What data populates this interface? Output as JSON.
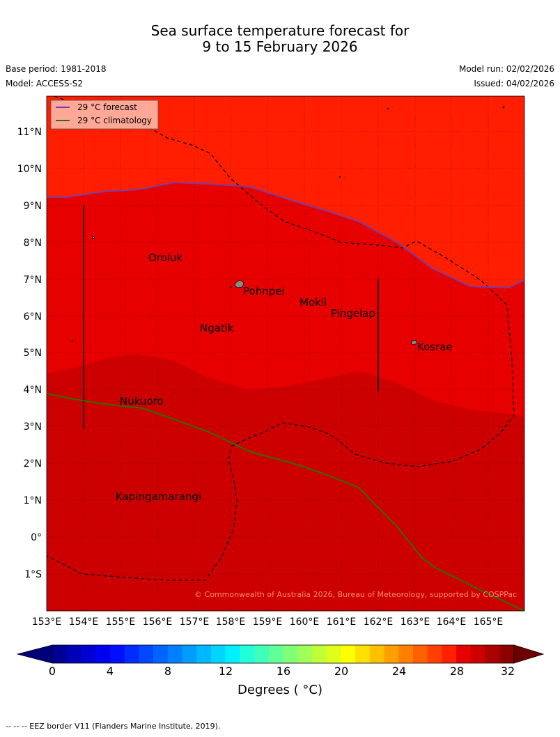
{
  "title": {
    "line1": "Sea surface temperature forecast for",
    "line2": "9 to 15 February 2026"
  },
  "meta": {
    "base_period": "Base period: 1981-2018",
    "model": "Model: ACCESS-S2",
    "model_run": "Model run: 02/02/2026",
    "issued": "Issued: 04/02/2026"
  },
  "map": {
    "lon_range": [
      153,
      166
    ],
    "lat_range": [
      -2,
      12
    ],
    "lon_ticks": [
      "153°E",
      "154°E",
      "155°E",
      "156°E",
      "157°E",
      "158°E",
      "159°E",
      "160°E",
      "161°E",
      "162°E",
      "163°E",
      "164°E",
      "165°E"
    ],
    "lat_ticks": [
      "1°S",
      "0°",
      "1°N",
      "2°N",
      "3°N",
      "4°N",
      "5°N",
      "6°N",
      "7°N",
      "8°N",
      "9°N",
      "10°N",
      "11°N"
    ],
    "legend": {
      "forecast": "29 °C  forecast",
      "climatology": "29 °C  climatology"
    },
    "places": [
      {
        "name": "Oroluk",
        "lon": 155.8,
        "lat": 7.5
      },
      {
        "name": "Pohnpei",
        "lon": 158.2,
        "lat": 6.8
      },
      {
        "name": "Mokil",
        "lon": 159.8,
        "lat": 6.2
      },
      {
        "name": "Pingelap",
        "lon": 160.8,
        "lat": 5.9
      },
      {
        "name": "Ngatik",
        "lon": 157.3,
        "lat": 5.6
      },
      {
        "name": "Kosrae",
        "lon": 163.0,
        "lat": 5.0
      },
      {
        "name": "Nukuoro",
        "lon": 154.9,
        "lat": 3.6
      },
      {
        "name": "Kapingamarangi",
        "lon": 154.9,
        "lat": 1.05
      }
    ],
    "copyright": "© Commonwealth of Australia 2026, Bureau of Meteorology, supported by COSPPac",
    "colors": {
      "zone_31": "#ff1e00",
      "zone_30": "#e60000",
      "zone_29": "#cc0000",
      "forecast_line": "#7a3ca8",
      "climatology_line": "#2f6e00"
    }
  },
  "colorbar": {
    "ticks": [
      "0",
      "4",
      "8",
      "12",
      "16",
      "20",
      "24",
      "28",
      "32"
    ],
    "label": "Degrees ( °C)",
    "colors": [
      "#000096",
      "#0000b4",
      "#0000d2",
      "#0000f0",
      "#0010ff",
      "#002cff",
      "#0048ff",
      "#0064ff",
      "#0080ff",
      "#009cff",
      "#00b8ff",
      "#00d4ff",
      "#00f0ff",
      "#20ffd8",
      "#40ffb8",
      "#60ff98",
      "#80ff78",
      "#a0ff58",
      "#c0ff38",
      "#e0ff18",
      "#ffff00",
      "#ffe000",
      "#ffc000",
      "#ffa000",
      "#ff8000",
      "#ff6000",
      "#ff4000",
      "#ff2000",
      "#e60000",
      "#cc0000",
      "#aa0000",
      "#8c0000"
    ]
  },
  "footer": "--  --  -- EEZ border V11 (Flanders Marine Institute, 2019)."
}
